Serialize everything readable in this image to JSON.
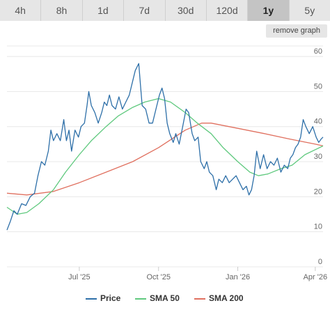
{
  "range_tabs": [
    "4h",
    "8h",
    "1d",
    "7d",
    "30d",
    "120d",
    "1y",
    "5y"
  ],
  "active_tab": "1y",
  "remove_graph_label": "remove graph",
  "chart_data": {
    "type": "line",
    "title": "",
    "xlabel": "",
    "ylabel": "",
    "x_start": "2025-04-08",
    "x_end": "2026-04-10",
    "ylim": [
      0,
      63
    ],
    "yticks": [
      0,
      10,
      20,
      30,
      40,
      50,
      60
    ],
    "xticks": [
      {
        "date": "2025-07-01",
        "label": "Jul '25"
      },
      {
        "date": "2025-10-01",
        "label": "Oct '25"
      },
      {
        "date": "2026-01-01",
        "label": "Jan '26"
      },
      {
        "date": "2026-04-01",
        "label": "Apr '26"
      }
    ],
    "grid": true,
    "legend_position": "bottom",
    "series": [
      {
        "name": "Price",
        "color": "#2d6fa8",
        "points": [
          [
            "2025-04-08",
            10.5
          ],
          [
            "2025-04-12",
            13
          ],
          [
            "2025-04-16",
            16
          ],
          [
            "2025-04-20",
            15
          ],
          [
            "2025-04-25",
            18
          ],
          [
            "2025-04-30",
            17.5
          ],
          [
            "2025-05-05",
            20
          ],
          [
            "2025-05-10",
            21
          ],
          [
            "2025-05-14",
            26
          ],
          [
            "2025-05-18",
            30
          ],
          [
            "2025-05-22",
            29
          ],
          [
            "2025-05-26",
            33
          ],
          [
            "2025-05-29",
            39
          ],
          [
            "2025-06-01",
            36
          ],
          [
            "2025-06-05",
            38
          ],
          [
            "2025-06-09",
            36
          ],
          [
            "2025-06-13",
            42
          ],
          [
            "2025-06-16",
            36
          ],
          [
            "2025-06-19",
            39
          ],
          [
            "2025-06-22",
            33
          ],
          [
            "2025-06-26",
            39
          ],
          [
            "2025-06-30",
            37
          ],
          [
            "2025-07-03",
            40
          ],
          [
            "2025-07-07",
            41
          ],
          [
            "2025-07-10",
            46
          ],
          [
            "2025-07-12",
            50
          ],
          [
            "2025-07-15",
            46
          ],
          [
            "2025-07-19",
            44
          ],
          [
            "2025-07-23",
            41
          ],
          [
            "2025-07-27",
            44
          ],
          [
            "2025-07-30",
            47
          ],
          [
            "2025-08-02",
            46
          ],
          [
            "2025-08-05",
            49
          ],
          [
            "2025-08-08",
            46
          ],
          [
            "2025-08-12",
            45
          ],
          [
            "2025-08-16",
            48.5
          ],
          [
            "2025-08-20",
            45
          ],
          [
            "2025-08-24",
            47
          ],
          [
            "2025-08-28",
            49
          ],
          [
            "2025-09-01",
            53
          ],
          [
            "2025-09-04",
            56
          ],
          [
            "2025-09-06",
            57
          ],
          [
            "2025-09-08",
            58
          ],
          [
            "2025-09-10",
            52
          ],
          [
            "2025-09-12",
            46
          ],
          [
            "2025-09-16",
            45
          ],
          [
            "2025-09-20",
            41
          ],
          [
            "2025-09-24",
            41
          ],
          [
            "2025-09-28",
            45
          ],
          [
            "2025-10-02",
            49
          ],
          [
            "2025-10-05",
            51
          ],
          [
            "2025-10-08",
            48
          ],
          [
            "2025-10-11",
            41
          ],
          [
            "2025-10-14",
            38
          ],
          [
            "2025-10-18",
            35.5
          ],
          [
            "2025-10-21",
            38
          ],
          [
            "2025-10-25",
            35
          ],
          [
            "2025-10-29",
            40
          ],
          [
            "2025-11-02",
            45
          ],
          [
            "2025-11-05",
            44
          ],
          [
            "2025-11-09",
            38
          ],
          [
            "2025-11-12",
            36
          ],
          [
            "2025-11-16",
            37
          ],
          [
            "2025-11-19",
            30
          ],
          [
            "2025-11-23",
            28
          ],
          [
            "2025-11-26",
            30
          ],
          [
            "2025-11-29",
            27
          ],
          [
            "2025-12-03",
            26
          ],
          [
            "2025-12-07",
            22
          ],
          [
            "2025-12-10",
            25
          ],
          [
            "2025-12-14",
            24
          ],
          [
            "2025-12-18",
            26
          ],
          [
            "2025-12-22",
            24
          ],
          [
            "2025-12-26",
            25
          ],
          [
            "2025-12-30",
            26
          ],
          [
            "2026-01-03",
            24
          ],
          [
            "2026-01-07",
            22
          ],
          [
            "2026-01-11",
            23
          ],
          [
            "2026-01-14",
            20.5
          ],
          [
            "2026-01-17",
            22
          ],
          [
            "2026-01-20",
            26
          ],
          [
            "2026-01-23",
            33
          ],
          [
            "2026-01-27",
            28
          ],
          [
            "2026-01-31",
            32
          ],
          [
            "2026-02-04",
            28
          ],
          [
            "2026-02-08",
            30
          ],
          [
            "2026-02-12",
            29
          ],
          [
            "2026-02-16",
            31
          ],
          [
            "2026-02-20",
            27
          ],
          [
            "2026-02-24",
            29
          ],
          [
            "2026-02-28",
            28
          ],
          [
            "2026-03-03",
            31
          ],
          [
            "2026-03-06",
            32
          ],
          [
            "2026-03-09",
            34
          ],
          [
            "2026-03-12",
            35
          ],
          [
            "2026-03-15",
            37
          ],
          [
            "2026-03-18",
            42
          ],
          [
            "2026-03-21",
            40
          ],
          [
            "2026-03-25",
            38
          ],
          [
            "2026-03-29",
            40
          ],
          [
            "2026-04-02",
            37
          ],
          [
            "2026-04-05",
            35.5
          ],
          [
            "2026-04-08",
            36.5
          ],
          [
            "2026-04-10",
            37
          ]
        ]
      },
      {
        "name": "SMA 50",
        "color": "#5fc97e",
        "points": [
          [
            "2025-04-08",
            17
          ],
          [
            "2025-04-20",
            15
          ],
          [
            "2025-05-01",
            15.5
          ],
          [
            "2025-05-15",
            18
          ],
          [
            "2025-06-01",
            22
          ],
          [
            "2025-06-15",
            27
          ],
          [
            "2025-07-01",
            32
          ],
          [
            "2025-07-15",
            36
          ],
          [
            "2025-08-01",
            40
          ],
          [
            "2025-08-15",
            43
          ],
          [
            "2025-09-01",
            45.5
          ],
          [
            "2025-09-15",
            47
          ],
          [
            "2025-10-01",
            48
          ],
          [
            "2025-10-15",
            47
          ],
          [
            "2025-11-01",
            44
          ],
          [
            "2025-11-15",
            41
          ],
          [
            "2025-12-01",
            38
          ],
          [
            "2025-12-15",
            34
          ],
          [
            "2026-01-01",
            30
          ],
          [
            "2026-01-15",
            27
          ],
          [
            "2026-01-25",
            26
          ],
          [
            "2026-02-05",
            26.5
          ],
          [
            "2026-02-20",
            28
          ],
          [
            "2026-03-05",
            29
          ],
          [
            "2026-03-20",
            32
          ],
          [
            "2026-04-10",
            34.5
          ]
        ]
      },
      {
        "name": "SMA 200",
        "color": "#e0705f",
        "points": [
          [
            "2025-04-08",
            21
          ],
          [
            "2025-05-01",
            20.5
          ],
          [
            "2025-06-01",
            21.5
          ],
          [
            "2025-07-01",
            24
          ],
          [
            "2025-08-01",
            27
          ],
          [
            "2025-09-01",
            30
          ],
          [
            "2025-10-01",
            34
          ],
          [
            "2025-11-01",
            39
          ],
          [
            "2025-11-20",
            41
          ],
          [
            "2025-12-01",
            41
          ],
          [
            "2026-01-01",
            39.5
          ],
          [
            "2026-02-01",
            38
          ],
          [
            "2026-03-01",
            36.5
          ],
          [
            "2026-04-01",
            35
          ],
          [
            "2026-04-10",
            34.5
          ]
        ]
      }
    ]
  }
}
